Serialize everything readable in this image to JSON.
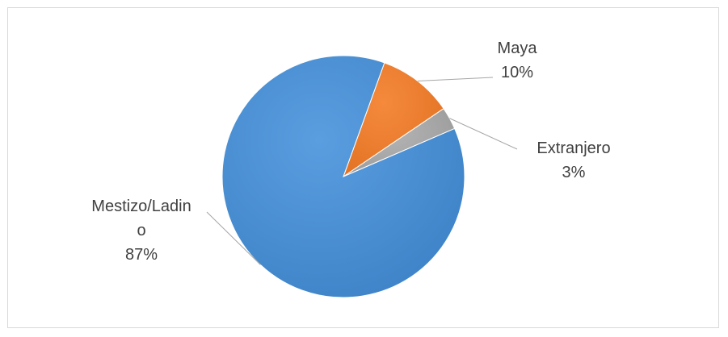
{
  "chart_data": {
    "type": "pie",
    "title": "",
    "slices": [
      {
        "label": "Maya",
        "label_lines": [
          "Maya"
        ],
        "value": 10,
        "percent_label": "10%",
        "color": "#ed7d31"
      },
      {
        "label": "Extranjero",
        "label_lines": [
          "Extranjero"
        ],
        "value": 3,
        "percent_label": "3%",
        "color": "#a5a5a5"
      },
      {
        "label": "Mestizo/Ladino",
        "label_lines": [
          "Mestizo/Ladin",
          "o"
        ],
        "value": 87,
        "percent_label": "87%",
        "color": "#4a8fd1"
      }
    ],
    "legend": "none",
    "data_labels": "outside with leader lines"
  }
}
